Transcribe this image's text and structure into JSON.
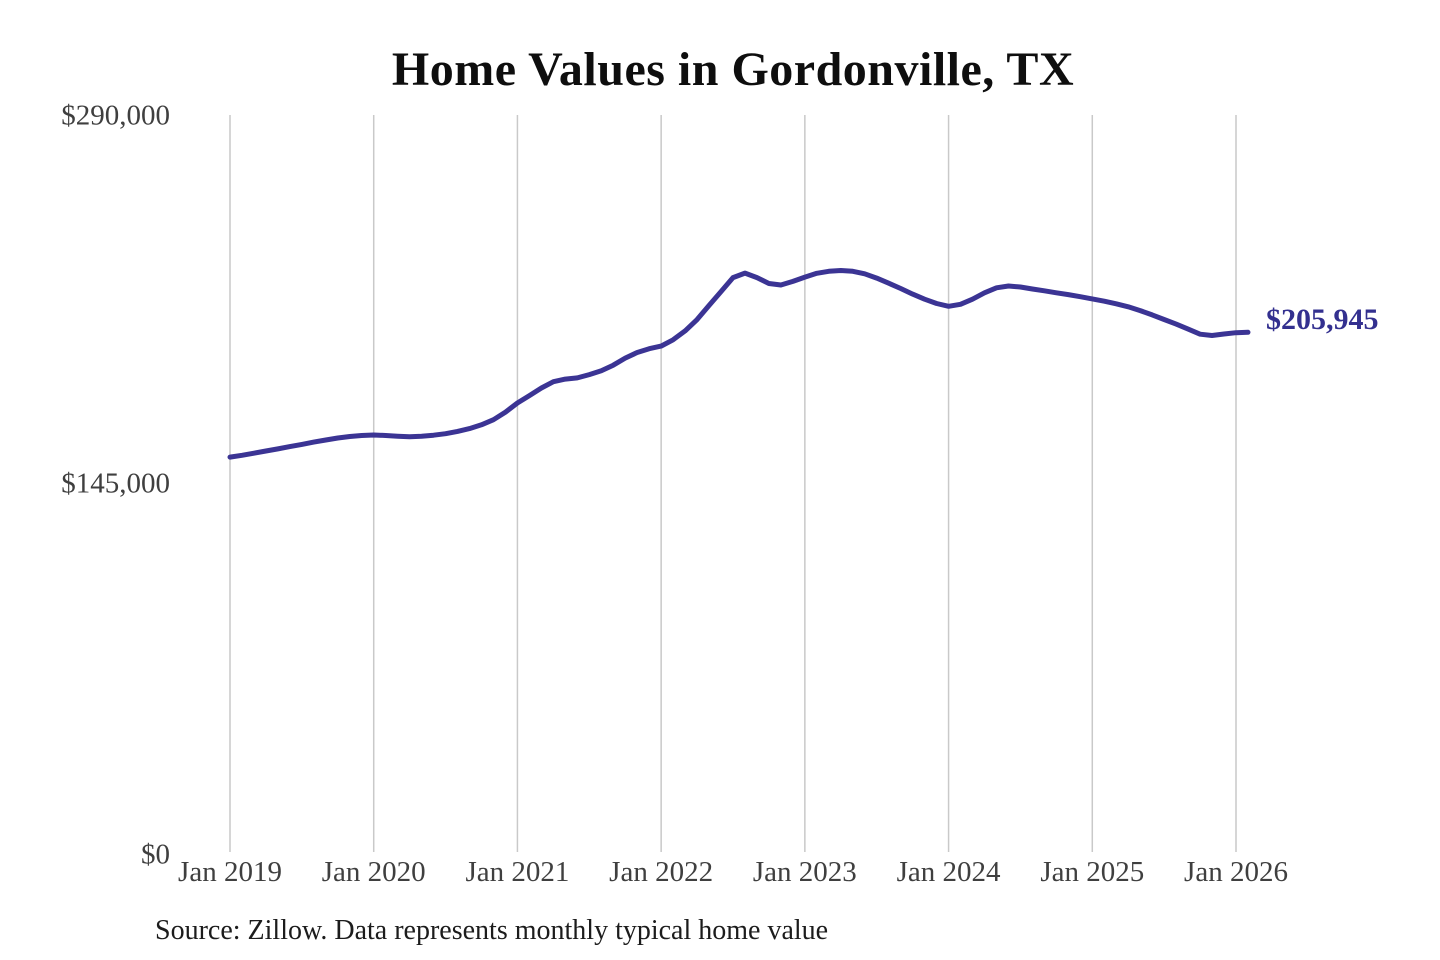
{
  "chart": {
    "title": "Home Values in Gordonville, TX",
    "source_note": "Source: Zillow. Data represents monthly typical home value",
    "end_value_label": "$205,945",
    "colors": {
      "line": "#3b3494",
      "end_label": "#33308f",
      "gridline": "#c9c9c9",
      "axis_text": "#3f3f3f",
      "title_text": "#0e0e0e",
      "source_text": "#1c1c1c"
    },
    "y_axis": {
      "labels": [
        "$290,000",
        "$145,000",
        "$0"
      ]
    },
    "x_axis": {
      "labels": [
        "Jan 2019",
        "Jan 2020",
        "Jan 2021",
        "Jan 2022",
        "Jan 2023",
        "Jan 2024",
        "Jan 2025",
        "Jan 2026"
      ]
    }
  },
  "chart_data": {
    "type": "line",
    "title": "Home Values in Gordonville, TX",
    "xlabel": "",
    "ylabel": "",
    "ylim": [
      0,
      290000
    ],
    "y_ticks": [
      0,
      145000,
      290000
    ],
    "y_tick_labels": [
      "$0",
      "$145,000",
      "$290,000"
    ],
    "x_tick_labels": [
      "Jan 2019",
      "Jan 2020",
      "Jan 2021",
      "Jan 2022",
      "Jan 2023",
      "Jan 2024",
      "Jan 2025",
      "Jan 2026"
    ],
    "x_start": "2019-01",
    "x_end": "2026-02",
    "x_interval": "month",
    "grid": "vertical",
    "legend": false,
    "final_value": 205945,
    "final_value_label": "$205,945",
    "series": [
      {
        "name": "Typical home value",
        "values": [
          156800,
          157500,
          158300,
          159200,
          160000,
          160900,
          161800,
          162700,
          163500,
          164300,
          164900,
          165300,
          165500,
          165300,
          165000,
          164800,
          165000,
          165400,
          166000,
          166900,
          168000,
          169500,
          171500,
          174500,
          178100,
          181000,
          184000,
          186500,
          187500,
          188000,
          189300,
          190800,
          193000,
          195800,
          198000,
          199500,
          200500,
          203000,
          206500,
          211000,
          216500,
          222000,
          227500,
          229300,
          227500,
          225200,
          224600,
          226000,
          227700,
          229200,
          230000,
          230300,
          230000,
          229000,
          227300,
          225300,
          223200,
          221000,
          219000,
          217300,
          216200,
          217000,
          219000,
          221500,
          223500,
          224200,
          223800,
          223000,
          222300,
          221500,
          220800,
          220000,
          219100,
          218200,
          217200,
          216000,
          214500,
          212800,
          211000,
          209200,
          207200,
          205200,
          204700,
          205300,
          205800,
          205945
        ]
      }
    ]
  }
}
